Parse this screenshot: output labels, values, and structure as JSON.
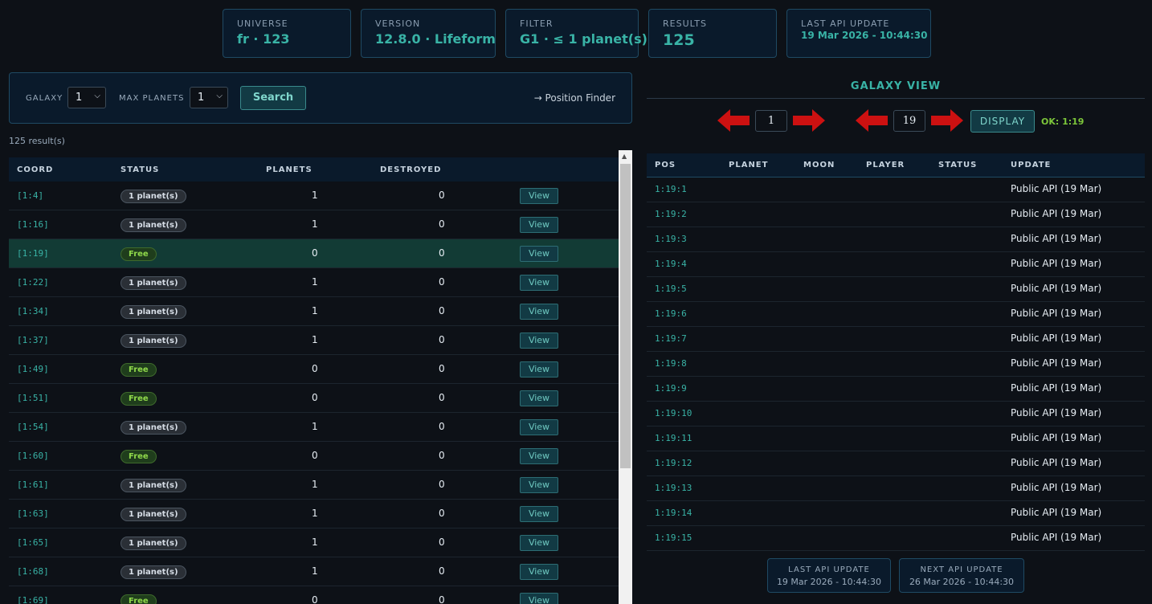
{
  "cards": {
    "universe": {
      "label": "UNIVERSE",
      "value": "fr · 123"
    },
    "version": {
      "label": "VERSION",
      "value": "12.8.0 · Lifeform"
    },
    "filter": {
      "label": "FILTER",
      "value": "G1 · ≤ 1 planet(s)"
    },
    "results": {
      "label": "RESULTS",
      "value": "125"
    },
    "last_update": {
      "label": "LAST API UPDATE",
      "value": "19 Mar 2026 - 10:44:30"
    }
  },
  "search": {
    "galaxy_label": "GALAXY",
    "galaxy_value": "1",
    "max_planets_label": "MAX PLANETS",
    "max_planets_value": "1",
    "search_button": "Search",
    "position_finder": "→ Position Finder"
  },
  "result_count": "125 result(s)",
  "results_table": {
    "headers": {
      "coord": "COORD",
      "status": "STATUS",
      "planets": "PLANETS",
      "destroyed": "DESTROYED"
    },
    "view_label": "View",
    "rows": [
      {
        "coord": "[1:4]",
        "status": "1 planet(s)",
        "free": false,
        "planets": "1",
        "destroyed": "0"
      },
      {
        "coord": "[1:16]",
        "status": "1 planet(s)",
        "free": false,
        "planets": "1",
        "destroyed": "0"
      },
      {
        "coord": "[1:19]",
        "status": "Free",
        "free": true,
        "planets": "0",
        "destroyed": "0",
        "highlight": true
      },
      {
        "coord": "[1:22]",
        "status": "1 planet(s)",
        "free": false,
        "planets": "1",
        "destroyed": "0"
      },
      {
        "coord": "[1:34]",
        "status": "1 planet(s)",
        "free": false,
        "planets": "1",
        "destroyed": "0"
      },
      {
        "coord": "[1:37]",
        "status": "1 planet(s)",
        "free": false,
        "planets": "1",
        "destroyed": "0"
      },
      {
        "coord": "[1:49]",
        "status": "Free",
        "free": true,
        "planets": "0",
        "destroyed": "0"
      },
      {
        "coord": "[1:51]",
        "status": "Free",
        "free": true,
        "planets": "0",
        "destroyed": "0"
      },
      {
        "coord": "[1:54]",
        "status": "1 planet(s)",
        "free": false,
        "planets": "1",
        "destroyed": "0"
      },
      {
        "coord": "[1:60]",
        "status": "Free",
        "free": true,
        "planets": "0",
        "destroyed": "0"
      },
      {
        "coord": "[1:61]",
        "status": "1 planet(s)",
        "free": false,
        "planets": "1",
        "destroyed": "0"
      },
      {
        "coord": "[1:63]",
        "status": "1 planet(s)",
        "free": false,
        "planets": "1",
        "destroyed": "0"
      },
      {
        "coord": "[1:65]",
        "status": "1 planet(s)",
        "free": false,
        "planets": "1",
        "destroyed": "0"
      },
      {
        "coord": "[1:68]",
        "status": "1 planet(s)",
        "free": false,
        "planets": "1",
        "destroyed": "0"
      },
      {
        "coord": "[1:69]",
        "status": "Free",
        "free": true,
        "planets": "0",
        "destroyed": "0"
      }
    ]
  },
  "galaxy_view": {
    "title": "GALAXY VIEW",
    "galaxy": "1",
    "system": "19",
    "display_button": "DISPLAY",
    "status": "OK: 1:19",
    "headers": {
      "pos": "POS",
      "planet": "PLANET",
      "moon": "MOON",
      "player": "PLAYER",
      "status": "STATUS",
      "update": "UPDATE"
    },
    "rows": [
      {
        "pos": "1:19:1",
        "update": "Public API (19 Mar)"
      },
      {
        "pos": "1:19:2",
        "update": "Public API (19 Mar)"
      },
      {
        "pos": "1:19:3",
        "update": "Public API (19 Mar)"
      },
      {
        "pos": "1:19:4",
        "update": "Public API (19 Mar)"
      },
      {
        "pos": "1:19:5",
        "update": "Public API (19 Mar)"
      },
      {
        "pos": "1:19:6",
        "update": "Public API (19 Mar)"
      },
      {
        "pos": "1:19:7",
        "update": "Public API (19 Mar)"
      },
      {
        "pos": "1:19:8",
        "update": "Public API (19 Mar)"
      },
      {
        "pos": "1:19:9",
        "update": "Public API (19 Mar)"
      },
      {
        "pos": "1:19:10",
        "update": "Public API (19 Mar)"
      },
      {
        "pos": "1:19:11",
        "update": "Public API (19 Mar)"
      },
      {
        "pos": "1:19:12",
        "update": "Public API (19 Mar)"
      },
      {
        "pos": "1:19:13",
        "update": "Public API (19 Mar)"
      },
      {
        "pos": "1:19:14",
        "update": "Public API (19 Mar)"
      },
      {
        "pos": "1:19:15",
        "update": "Public API (19 Mar)"
      }
    ],
    "footer": {
      "last_label": "LAST API UPDATE",
      "last_value": "19 Mar 2026 - 10:44:30",
      "next_label": "NEXT API UPDATE",
      "next_value": "26 Mar 2026 - 10:44:30"
    }
  },
  "colors": {
    "accent": "#39b3a6",
    "free": "#8fd84a",
    "arrow": "#cc1111"
  }
}
